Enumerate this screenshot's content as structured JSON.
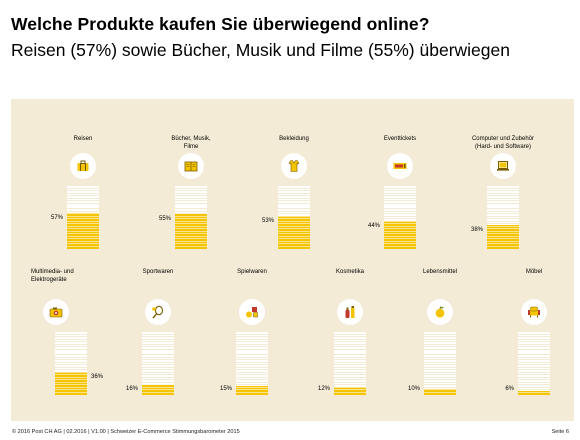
{
  "header": {
    "title": "Welche Produkte kaufen Sie überwiegend online?",
    "subtitle": "Reisen (57%) sowie Bücher, Musik und Filme (55%) überwiegen"
  },
  "footer": {
    "text": "© 2016 Post CH AG | 02.2016 | V1.00 | Schweizer E-Commerce Stimmungsbarometer 2015",
    "page": "Seite 6"
  },
  "colors": {
    "accent": "#f5c400",
    "panel": "#f3ebd5",
    "icon_bg": "#ffffff"
  },
  "chart_data": {
    "type": "bar",
    "categories": [
      "Reisen",
      "Bücher, Musik, Filme",
      "Bekleidung",
      "Eventtickets",
      "Computer und Zubehör (Hard- und Software)",
      "Multimedia- und Elektrogeräte",
      "Sportwaren",
      "Spielwaren",
      "Kosmetika",
      "Lebensmittel",
      "Möbel"
    ],
    "values": [
      57,
      55,
      53,
      44,
      38,
      36,
      16,
      15,
      12,
      10,
      6
    ],
    "value_labels": [
      "57%",
      "55%",
      "53%",
      "44%",
      "38%",
      "36%",
      "16%",
      "15%",
      "12%",
      "10%",
      "6%"
    ],
    "label_lines": [
      [
        "Reisen"
      ],
      [
        "Bücher, Musik,",
        "Filme"
      ],
      [
        "Bekleidung"
      ],
      [
        "Eventtickets"
      ],
      [
        "Computer und Zubehör",
        "(Hard- und Software)"
      ],
      [
        "Multimedia- und",
        "Elektrogeräte"
      ],
      [
        "Sportwaren"
      ],
      [
        "Spielwaren"
      ],
      [
        "Kosmetika"
      ],
      [
        "Lebensmittel"
      ],
      [
        "Möbel"
      ]
    ],
    "icons": [
      "suitcase-icon",
      "book-icon",
      "shirt-icon",
      "ticket-icon",
      "laptop-icon",
      "camera-icon",
      "tennis-racket-icon",
      "toys-icon",
      "cosmetics-icon",
      "apple-icon",
      "armchair-icon"
    ],
    "ylim": [
      0,
      100
    ]
  }
}
